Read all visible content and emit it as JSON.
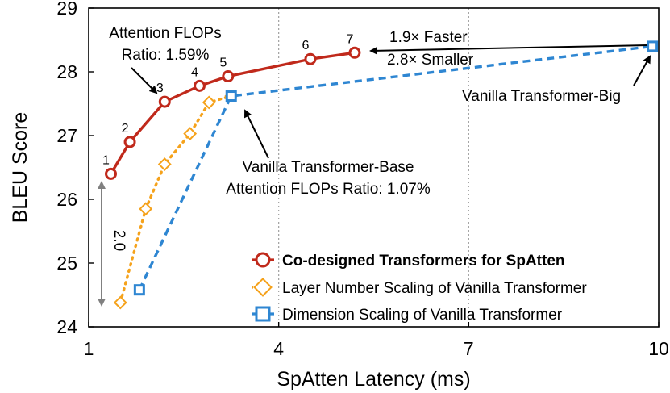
{
  "chart_data": {
    "type": "line",
    "xlabel": "SpAtten Latency (ms)",
    "ylabel": "BLEU Score",
    "xlim": [
      1,
      10
    ],
    "ylim": [
      24,
      29
    ],
    "xticks": [
      1,
      4,
      7,
      10
    ],
    "yticks": [
      24,
      25,
      26,
      27,
      28,
      29
    ],
    "grid": "vertical-dotted",
    "legend_position": "bottom-right",
    "series": [
      {
        "name": "Co-designed Transformers for SpAtten",
        "color": "#c0291b",
        "marker": "circle",
        "line": "solid",
        "x": [
          1.35,
          1.65,
          2.2,
          2.75,
          3.2,
          4.5,
          5.2
        ],
        "y": [
          26.4,
          26.9,
          27.53,
          27.78,
          27.93,
          28.2,
          28.3
        ],
        "point_labels": [
          "1",
          "2",
          "3",
          "4",
          "5",
          "6",
          "7"
        ]
      },
      {
        "name": "Layer Number Scaling of Vanilla Transformer",
        "color": "#f5a21b",
        "marker": "diamond",
        "line": "dotted",
        "x": [
          1.5,
          1.9,
          2.2,
          2.6,
          2.9,
          3.25
        ],
        "y": [
          24.38,
          25.85,
          26.55,
          27.03,
          27.52,
          27.62
        ]
      },
      {
        "name": "Dimension Scaling of Vanilla Transformer",
        "color": "#2e86d2",
        "marker": "square",
        "line": "dashed",
        "x": [
          1.8,
          3.25,
          9.9
        ],
        "y": [
          24.58,
          27.62,
          28.4
        ]
      }
    ],
    "annotations": {
      "attn_big_1": "Attention FLOPs",
      "attn_big_2": "Ratio: 1.59%",
      "faster": "1.9× Faster",
      "smaller": "2.8× Smaller",
      "vanilla_big": "Vanilla Transformer-Big",
      "vanilla_base_1": "Vanilla Transformer-Base",
      "vanilla_base_2": "Attention FLOPs Ratio: 1.07%",
      "delta": "2.0"
    }
  }
}
